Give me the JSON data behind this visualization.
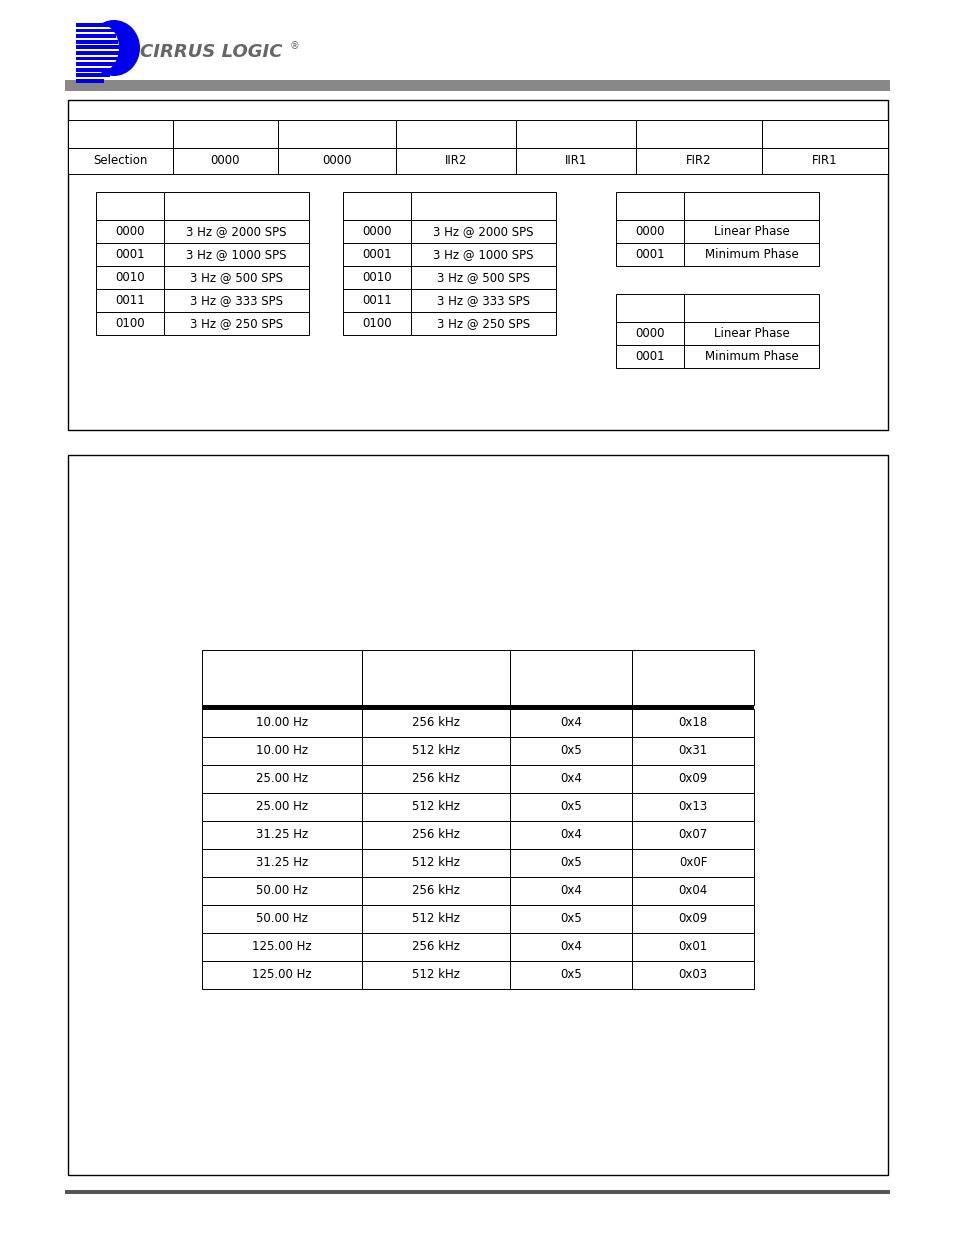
{
  "page_bg": "#ffffff",
  "header_bar_color": "#888888",
  "table1_header": [
    "Selection",
    "0000",
    "0000",
    "IIR2",
    "IIR1",
    "FIR2",
    "FIR1"
  ],
  "table1_sub_left": [
    [
      "0000",
      "3 Hz @ 2000 SPS"
    ],
    [
      "0001",
      "3 Hz @ 1000 SPS"
    ],
    [
      "0010",
      "3 Hz @ 500 SPS"
    ],
    [
      "0011",
      "3 Hz @ 333 SPS"
    ],
    [
      "0100",
      "3 Hz @ 250 SPS"
    ]
  ],
  "table1_sub_mid": [
    [
      "0000",
      "3 Hz @ 2000 SPS"
    ],
    [
      "0001",
      "3 Hz @ 1000 SPS"
    ],
    [
      "0010",
      "3 Hz @ 500 SPS"
    ],
    [
      "0011",
      "3 Hz @ 333 SPS"
    ],
    [
      "0100",
      "3 Hz @ 250 SPS"
    ]
  ],
  "table1_sub_right_top": [
    [
      "0000",
      "Linear Phase"
    ],
    [
      "0001",
      "Minimum Phase"
    ]
  ],
  "table1_sub_right_bot": [
    [
      "0000",
      "Linear Phase"
    ],
    [
      "0001",
      "Minimum Phase"
    ]
  ],
  "table2_data": [
    [
      "10.00 Hz",
      "256 kHz",
      "0x4",
      "0x18"
    ],
    [
      "10.00 Hz",
      "512 kHz",
      "0x5",
      "0x31"
    ],
    [
      "25.00 Hz",
      "256 kHz",
      "0x4",
      "0x09"
    ],
    [
      "25.00 Hz",
      "512 kHz",
      "0x5",
      "0x13"
    ],
    [
      "31.25 Hz",
      "256 kHz",
      "0x4",
      "0x07"
    ],
    [
      "31.25 Hz",
      "512 kHz",
      "0x5",
      "0x0F"
    ],
    [
      "50.00 Hz",
      "256 kHz",
      "0x4",
      "0x04"
    ],
    [
      "50.00 Hz",
      "512 kHz",
      "0x5",
      "0x09"
    ],
    [
      "125.00 Hz",
      "256 kHz",
      "0x4",
      "0x01"
    ],
    [
      "125.00 Hz",
      "512 kHz",
      "0x5",
      "0x03"
    ]
  ],
  "logo_blue": "#0000ee",
  "logo_text_color": "#666666",
  "box_edge": "#000000",
  "gray_bar": "#888888",
  "bottom_bar": "#555555",
  "font_size": 8.5
}
